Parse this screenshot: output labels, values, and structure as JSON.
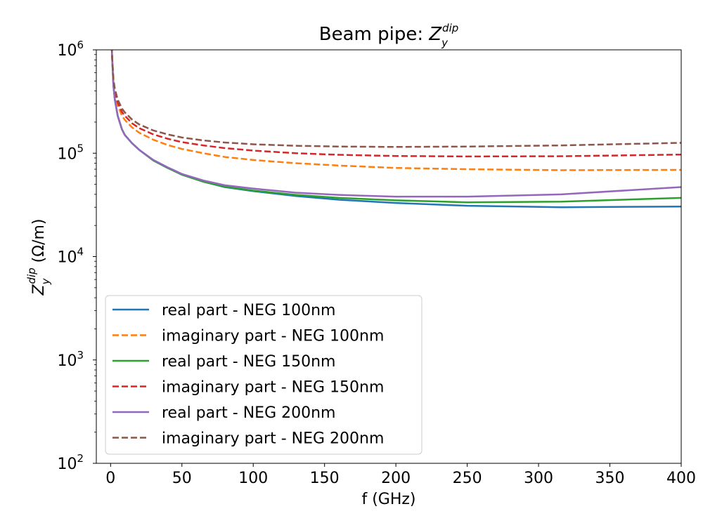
{
  "chart_data": {
    "type": "line",
    "title": {
      "main": "Beam pipe: ",
      "var": "Z",
      "sub": "y",
      "sup": "dip"
    },
    "xlabel": "f (GHz)",
    "ylabel": {
      "var": "Z",
      "sub": "y",
      "sup": "dip",
      "unit": " (Ω/m)"
    },
    "xlim": [
      -10,
      400
    ],
    "ylim": [
      100,
      1000000
    ],
    "y_scale": "log",
    "grid": false,
    "legend_position": "lower-left",
    "x_ticks": [
      0,
      50,
      100,
      150,
      200,
      250,
      300,
      350,
      400
    ],
    "y_ticks": [
      {
        "value": 100,
        "base": "10",
        "exp": "2"
      },
      {
        "value": 1000,
        "base": "10",
        "exp": "3"
      },
      {
        "value": 10000,
        "base": "10",
        "exp": "4"
      },
      {
        "value": 100000,
        "base": "10",
        "exp": "5"
      },
      {
        "value": 1000000,
        "base": "10",
        "exp": "6"
      }
    ],
    "series": [
      {
        "name": "real part - NEG 100nm",
        "color": "#1f77b4",
        "style": "solid",
        "points": [
          [
            0.5,
            2000000
          ],
          [
            1,
            900000
          ],
          [
            2,
            450000
          ],
          [
            3,
            330000
          ],
          [
            5,
            230000
          ],
          [
            8,
            170000
          ],
          [
            10,
            150000
          ],
          [
            15,
            125000
          ],
          [
            20,
            108000
          ],
          [
            30,
            85000
          ],
          [
            40,
            72000
          ],
          [
            50,
            62000
          ],
          [
            65,
            53000
          ],
          [
            80,
            47000
          ],
          [
            100,
            43000
          ],
          [
            130,
            38500
          ],
          [
            160,
            35500
          ],
          [
            200,
            33000
          ],
          [
            250,
            31000
          ],
          [
            316,
            30000
          ],
          [
            400,
            30500
          ]
        ]
      },
      {
        "name": "imaginary part - NEG 100nm",
        "color": "#ff7f0e",
        "style": "dashed",
        "points": [
          [
            0.5,
            2000000
          ],
          [
            1,
            900000
          ],
          [
            2,
            480000
          ],
          [
            3,
            380000
          ],
          [
            5,
            290000
          ],
          [
            8,
            230000
          ],
          [
            10,
            210000
          ],
          [
            15,
            178000
          ],
          [
            20,
            158000
          ],
          [
            30,
            135000
          ],
          [
            40,
            120000
          ],
          [
            50,
            110000
          ],
          [
            65,
            100000
          ],
          [
            80,
            92000
          ],
          [
            100,
            86000
          ],
          [
            130,
            80000
          ],
          [
            160,
            76000
          ],
          [
            200,
            72000
          ],
          [
            250,
            70000
          ],
          [
            316,
            68500
          ],
          [
            400,
            69000
          ]
        ]
      },
      {
        "name": "real part - NEG 150nm",
        "color": "#2ca02c",
        "style": "solid",
        "points": [
          [
            0.5,
            2000000
          ],
          [
            1,
            900000
          ],
          [
            2,
            450000
          ],
          [
            3,
            330000
          ],
          [
            5,
            230000
          ],
          [
            8,
            170000
          ],
          [
            10,
            150000
          ],
          [
            15,
            125000
          ],
          [
            20,
            108000
          ],
          [
            30,
            85000
          ],
          [
            40,
            72000
          ],
          [
            50,
            62000
          ],
          [
            65,
            53000
          ],
          [
            80,
            47500
          ],
          [
            100,
            43500
          ],
          [
            130,
            39500
          ],
          [
            160,
            37000
          ],
          [
            200,
            35000
          ],
          [
            250,
            33500
          ],
          [
            316,
            34000
          ],
          [
            400,
            37000
          ]
        ]
      },
      {
        "name": "imaginary part - NEG 150nm",
        "color": "#d62728",
        "style": "dashed",
        "points": [
          [
            0.5,
            2000000
          ],
          [
            1,
            900000
          ],
          [
            2,
            500000
          ],
          [
            3,
            400000
          ],
          [
            5,
            310000
          ],
          [
            8,
            250000
          ],
          [
            10,
            230000
          ],
          [
            15,
            195000
          ],
          [
            20,
            175000
          ],
          [
            30,
            152000
          ],
          [
            40,
            138000
          ],
          [
            50,
            128000
          ],
          [
            65,
            119000
          ],
          [
            80,
            112000
          ],
          [
            100,
            106000
          ],
          [
            130,
            100000
          ],
          [
            160,
            96500
          ],
          [
            200,
            94000
          ],
          [
            250,
            93000
          ],
          [
            316,
            93500
          ],
          [
            400,
            97000
          ]
        ]
      },
      {
        "name": "real part - NEG 200nm",
        "color": "#9467bd",
        "style": "solid",
        "points": [
          [
            0.5,
            2000000
          ],
          [
            1,
            900000
          ],
          [
            2,
            450000
          ],
          [
            3,
            330000
          ],
          [
            5,
            230000
          ],
          [
            8,
            170000
          ],
          [
            10,
            150000
          ],
          [
            15,
            125000
          ],
          [
            20,
            108000
          ],
          [
            30,
            86000
          ],
          [
            40,
            73000
          ],
          [
            50,
            63000
          ],
          [
            65,
            54500
          ],
          [
            80,
            49000
          ],
          [
            100,
            45500
          ],
          [
            130,
            41500
          ],
          [
            160,
            39500
          ],
          [
            200,
            38000
          ],
          [
            250,
            38000
          ],
          [
            316,
            40000
          ],
          [
            400,
            47000
          ]
        ]
      },
      {
        "name": "imaginary part - NEG 200nm",
        "color": "#8c564b",
        "style": "dashed",
        "points": [
          [
            0.5,
            2000000
          ],
          [
            1,
            900000
          ],
          [
            2,
            520000
          ],
          [
            3,
            420000
          ],
          [
            5,
            330000
          ],
          [
            8,
            270000
          ],
          [
            10,
            248000
          ],
          [
            15,
            212000
          ],
          [
            20,
            190000
          ],
          [
            30,
            166000
          ],
          [
            40,
            152000
          ],
          [
            50,
            142000
          ],
          [
            65,
            133000
          ],
          [
            80,
            127000
          ],
          [
            100,
            122000
          ],
          [
            130,
            118000
          ],
          [
            160,
            116000
          ],
          [
            200,
            115000
          ],
          [
            250,
            116000
          ],
          [
            316,
            119000
          ],
          [
            400,
            126000
          ]
        ]
      }
    ]
  }
}
